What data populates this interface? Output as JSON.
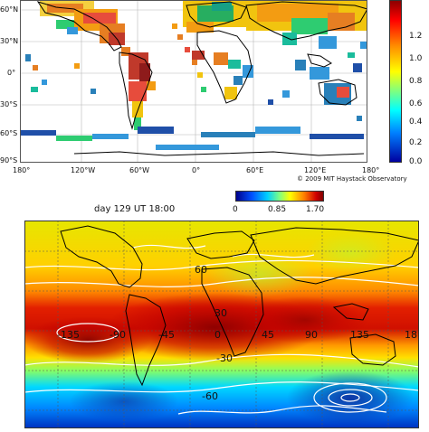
{
  "top_map": {
    "lat_labels": [
      "60°N",
      "30°N",
      "0°",
      "30°S",
      "60°S",
      "90°S"
    ],
    "lon_labels": [
      "180°",
      "120°W",
      "60°W",
      "0°",
      "60°E",
      "120°E",
      "180°"
    ],
    "colorbar_ticks": [
      "1.2",
      "1.0",
      "0.8",
      "0.6",
      "0.4",
      "0.2",
      "0.0"
    ],
    "copyright": "© 2009 MIT Haystack Observatory",
    "colors": {
      "ocean": "#ffffff",
      "coast": "#000000",
      "frame": "#555555"
    }
  },
  "bottom_map": {
    "title": "day 129 UT  18:00",
    "colorbar_ticks": [
      "0",
      "0.85",
      "1.70"
    ],
    "contour_labels": [
      "60",
      "30",
      "-135",
      "-90",
      "-45",
      "0",
      "45",
      "90",
      "135",
      "18",
      "-30",
      "-60"
    ],
    "colors": {
      "contour": "#ffffff",
      "coast": "#000000",
      "grid": "#666666"
    }
  }
}
